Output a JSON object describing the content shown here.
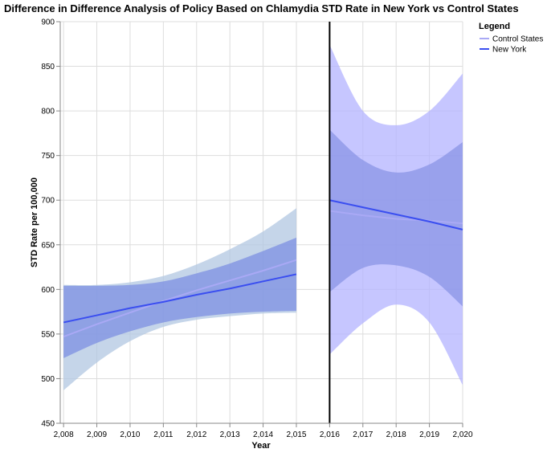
{
  "chart_data": {
    "type": "line",
    "title": "Difference in Difference Analysis of Policy Based on Chlamydia STD Rate in New York vs Control States",
    "xlabel": "Year",
    "ylabel": "STD Rate per 100,000",
    "xlim": [
      2007.9,
      2020.0
    ],
    "ylim": [
      450,
      900
    ],
    "x_ticks": [
      2008,
      2009,
      2010,
      2011,
      2012,
      2013,
      2014,
      2015,
      2016,
      2017,
      2018,
      2019,
      2020
    ],
    "x_tick_labels": [
      "2,008",
      "2,009",
      "2,010",
      "2,011",
      "2,012",
      "2,013",
      "2,014",
      "2,015",
      "2,016",
      "2,017",
      "2,018",
      "2,019",
      "2,020"
    ],
    "y_ticks": [
      450,
      500,
      550,
      600,
      650,
      700,
      750,
      800,
      850,
      900
    ],
    "y_tick_labels": [
      "450",
      "500",
      "550",
      "600",
      "650",
      "700",
      "750",
      "800",
      "850",
      "900"
    ],
    "grid": true,
    "policy_line_x": 2016,
    "legend": {
      "title": "Legend",
      "placement": "right",
      "entries": [
        "Control States",
        "New York"
      ]
    },
    "series": [
      {
        "name": "Control States",
        "color": "#a9a9f5",
        "segments": [
          {
            "x": [
              2008,
              2009,
              2010,
              2011,
              2012,
              2013,
              2014,
              2015
            ],
            "y": [
              547,
              561,
              574,
              587,
              599,
              610,
              621,
              633
            ],
            "lower": [
              487,
              518,
              542,
              558,
              566,
              570,
              573,
              574
            ],
            "upper": [
              605,
              605,
              608,
              615,
              628,
              645,
              665,
              691
            ],
            "band_color": "#b2c7e1"
          },
          {
            "x": [
              2016,
              2017,
              2018,
              2019,
              2020
            ],
            "y": [
              688,
              683,
              679,
              677,
              674
            ],
            "lower": [
              527,
              562,
              583,
              563,
              493
            ],
            "upper": [
              874,
              800,
              784,
              800,
              842
            ],
            "band_color": "#b3b3ff"
          }
        ]
      },
      {
        "name": "New York",
        "color": "#3a4ef0",
        "segments": [
          {
            "x": [
              2008,
              2009,
              2010,
              2011,
              2012,
              2013,
              2014,
              2015
            ],
            "y": [
              563,
              571,
              579,
              586,
              594,
              601,
              609,
              617
            ],
            "lower": [
              523,
              540,
              553,
              563,
              569,
              573,
              575,
              576
            ],
            "upper": [
              604,
              604,
              605,
              609,
              618,
              629,
              643,
              658
            ],
            "band_color": "#7c8fe2"
          },
          {
            "x": [
              2016,
              2017,
              2018,
              2019,
              2020
            ],
            "y": [
              700,
              692,
              684,
              676,
              667
            ],
            "lower": [
              597,
              624,
              627,
              614,
              581
            ],
            "upper": [
              779,
              745,
              731,
              740,
              765
            ],
            "band_color": "#8a94e6"
          }
        ]
      }
    ]
  }
}
